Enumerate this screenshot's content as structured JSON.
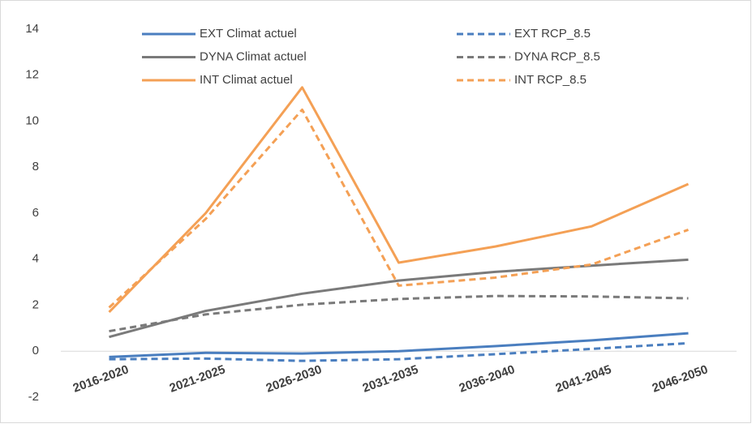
{
  "chart_data": {
    "type": "line",
    "categories": [
      "2016-2020",
      "2021-2025",
      "2026-2030",
      "2031-2035",
      "2036-2040",
      "2041-2045",
      "2046-2050"
    ],
    "series": [
      {
        "name": "EXT Climat actuel",
        "color": "#4a7ebf",
        "dashed": false,
        "values": [
          -0.25,
          -0.07,
          -0.1,
          0,
          0.22,
          0.47,
          0.78
        ]
      },
      {
        "name": "EXT RCP_8.5",
        "color": "#4a7ebf",
        "dashed": true,
        "values": [
          -0.35,
          -0.32,
          -0.42,
          -0.35,
          -0.13,
          0.1,
          0.35
        ]
      },
      {
        "name": "DYNA Climat actuel",
        "color": "#7a7a7a",
        "dashed": false,
        "values": [
          0.62,
          1.75,
          2.5,
          3.07,
          3.45,
          3.72,
          3.98
        ]
      },
      {
        "name": "DYNA RCP_8.5",
        "color": "#7a7a7a",
        "dashed": true,
        "values": [
          0.87,
          1.6,
          2.02,
          2.27,
          2.4,
          2.38,
          2.3
        ]
      },
      {
        "name": "INT Climat actuel",
        "color": "#f4a055",
        "dashed": false,
        "values": [
          1.7,
          6.0,
          11.47,
          3.85,
          4.55,
          5.43,
          7.27
        ]
      },
      {
        "name": "INT RCP_8.5",
        "color": "#f4a055",
        "dashed": true,
        "values": [
          1.9,
          5.75,
          10.5,
          2.85,
          3.2,
          3.77,
          5.28
        ]
      }
    ],
    "ylim": [
      -2,
      14
    ],
    "yticks": [
      -2,
      0,
      2,
      4,
      6,
      8,
      10,
      12,
      14
    ],
    "grid": false,
    "legend": "top"
  }
}
